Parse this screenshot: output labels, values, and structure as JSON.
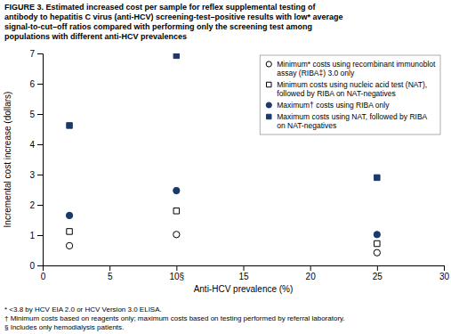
{
  "chart_data": {
    "type": "scatter",
    "title": "FIGURE 3. Estimated increased cost per sample for reflex supplemental testing of\nantibody to hepatitis C virus (anti-HCV) screening-test–positive results with low* average\nsignal-to-cut–off ratios compared with performing only the screening test among\npopulations with different anti-HCV prevalences",
    "xlabel": "Anti-HCV prevalence (%)",
    "ylabel": "Incremental cost increase (dollars)",
    "xlim": [
      0,
      30
    ],
    "ylim": [
      0,
      7
    ],
    "xticks": [
      0,
      5,
      {
        "value": 10,
        "label": "10§"
      },
      15,
      20,
      25,
      30
    ],
    "yticks": [
      0,
      1,
      2,
      3,
      4,
      5,
      6,
      7
    ],
    "legend": "upper right",
    "series": [
      {
        "name": "Minimum* costs using recombinant immunoblot\nassay (RIBA‡) 3.0 only",
        "x": [
          2,
          10,
          25
        ],
        "values": [
          0.65,
          1.02,
          0.42
        ],
        "marker": "circle-open",
        "color": "black"
      },
      {
        "name": "Minimum costs using nucleic acid test (NAT),\nfollowed by RIBA on NAT-negatives",
        "x": [
          2,
          10,
          25
        ],
        "values": [
          1.12,
          1.8,
          0.72
        ],
        "marker": "square-open",
        "color": "black"
      },
      {
        "name": "Maximum† costs using RIBA only",
        "x": [
          2,
          10,
          25
        ],
        "values": [
          1.65,
          2.47,
          1.02
        ],
        "marker": "circle",
        "color": "#1a3a6b"
      },
      {
        "name": "Maximum costs using NAT, followed by RIBA\non NAT-negatives",
        "x": [
          2,
          10,
          25
        ],
        "values": [
          4.62,
          6.93,
          2.9
        ],
        "marker": "square",
        "color": "#1a3a6b"
      }
    ],
    "annotations": [
      "* <3.8 by HCV EIA 2.0 or HCV Version 3.0 ELISA.",
      "† Minimum costs based on reagents only; maximum costs based on testing performed by referral laboratory.",
      "§ Includes only hemodialysis patients."
    ]
  }
}
